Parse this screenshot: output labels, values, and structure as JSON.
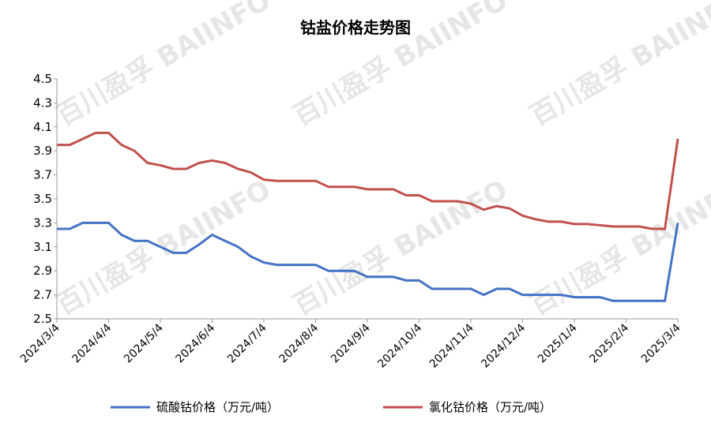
{
  "chart_data": {
    "type": "line",
    "title": "钴盐价格走势图",
    "watermark": "百川盈孚 BAIINFO",
    "categories": [
      "2024/3/4",
      null,
      null,
      null,
      "2024/4/4",
      null,
      null,
      null,
      "2024/5/4",
      null,
      null,
      null,
      "2024/6/4",
      null,
      null,
      null,
      "2024/7/4",
      null,
      null,
      null,
      "2024/8/4",
      null,
      null,
      null,
      "2024/9/4",
      null,
      null,
      null,
      "2024/10/4",
      null,
      null,
      null,
      "2024/11/4",
      null,
      null,
      null,
      "2024/12/4",
      null,
      null,
      null,
      "2025/1/4",
      null,
      null,
      null,
      "2025/2/4",
      null,
      null,
      null,
      "2025/3/4"
    ],
    "series": [
      {
        "name": "硫酸钴价格（万元/吨）",
        "color": "#4472c4",
        "values": [
          3.25,
          3.25,
          3.3,
          3.3,
          3.3,
          3.2,
          3.15,
          3.15,
          3.1,
          3.05,
          3.05,
          3.12,
          3.2,
          3.15,
          3.1,
          3.02,
          2.97,
          2.95,
          2.95,
          2.95,
          2.95,
          2.9,
          2.9,
          2.9,
          2.85,
          2.85,
          2.85,
          2.82,
          2.82,
          2.75,
          2.75,
          2.75,
          2.75,
          2.7,
          2.75,
          2.75,
          2.7,
          2.7,
          2.7,
          2.7,
          2.68,
          2.68,
          2.68,
          2.65,
          2.65,
          2.65,
          2.65,
          2.65,
          3.3
        ]
      },
      {
        "name": "氯化钴价格（万元/吨）",
        "color": "#c0504d",
        "values": [
          3.95,
          3.95,
          4.0,
          4.05,
          4.05,
          3.95,
          3.9,
          3.8,
          3.78,
          3.75,
          3.75,
          3.8,
          3.82,
          3.8,
          3.75,
          3.72,
          3.66,
          3.65,
          3.65,
          3.65,
          3.65,
          3.6,
          3.6,
          3.6,
          3.58,
          3.58,
          3.58,
          3.53,
          3.53,
          3.48,
          3.48,
          3.48,
          3.46,
          3.41,
          3.44,
          3.42,
          3.36,
          3.33,
          3.31,
          3.31,
          3.29,
          3.29,
          3.28,
          3.27,
          3.27,
          3.27,
          3.25,
          3.25,
          4.0
        ]
      }
    ],
    "ylim": [
      2.5,
      4.5
    ],
    "yticks": [
      2.5,
      2.7,
      2.9,
      3.1,
      3.3,
      3.5,
      3.7,
      3.9,
      4.1,
      4.3,
      4.5
    ],
    "legend": "bottom"
  }
}
